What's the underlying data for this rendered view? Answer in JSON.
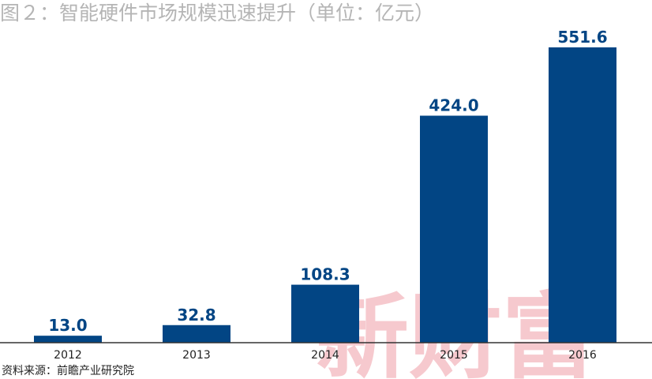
{
  "title": "图２：智能硬件市场规模迅速提升（单位：亿元）",
  "source": "资料来源：前瞻产业研究院",
  "watermark": "新财富",
  "colors": {
    "bar": "#024584",
    "value_label": "#024584",
    "axis": "#333333",
    "title": "#b5b5b5",
    "watermark": "#f6c9ce"
  },
  "chart_data": {
    "type": "bar",
    "title": "图２：智能硬件市场规模迅速提升（单位：亿元）",
    "xlabel": "",
    "ylabel": "",
    "categories": [
      "2012",
      "2013",
      "2014",
      "2015",
      "2016"
    ],
    "values": [
      13.0,
      32.8,
      108.3,
      424.0,
      551.6
    ],
    "value_labels": [
      "13.0",
      "32.8",
      "108.3",
      "424.0",
      "551.6"
    ],
    "unit": "亿元",
    "ylim": [
      0,
      560
    ],
    "grid": false,
    "legend": "none"
  }
}
